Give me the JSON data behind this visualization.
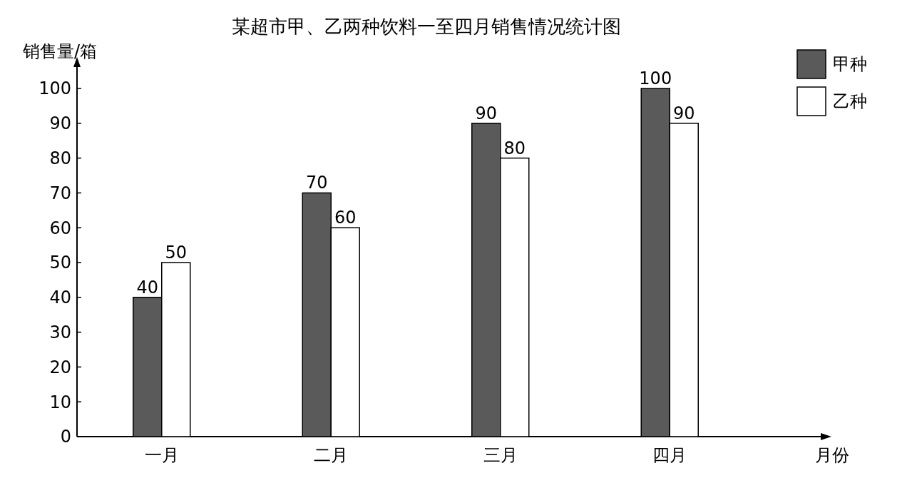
{
  "chart_data": {
    "type": "bar",
    "title": "某超市甲、乙两种饮料一至四月销售情况统计图",
    "xlabel": "月份",
    "ylabel": "销售量/箱",
    "categories": [
      "一月",
      "二月",
      "三月",
      "四月"
    ],
    "series": [
      {
        "name": "甲种",
        "color": "#5a5a5a",
        "values": [
          40,
          70,
          90,
          100
        ]
      },
      {
        "name": "乙种",
        "color": "#ffffff",
        "values": [
          50,
          60,
          80,
          90
        ]
      }
    ],
    "ylim": [
      0,
      100
    ],
    "yticks": [
      0,
      10,
      20,
      30,
      40,
      50,
      60,
      70,
      80,
      90,
      100
    ],
    "data_labels": true,
    "legend": "top right",
    "grid": false
  }
}
